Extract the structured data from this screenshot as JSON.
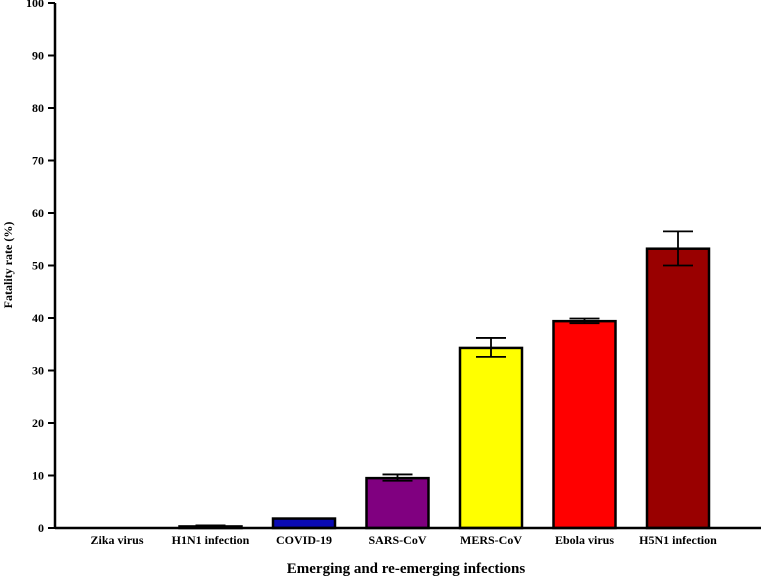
{
  "chart_data": {
    "type": "bar",
    "xlabel": "Emerging and re-emerging infections",
    "ylabel": "Fatality rate (%)",
    "ylim": [
      0,
      100
    ],
    "yticks": [
      0,
      10,
      20,
      30,
      40,
      50,
      60,
      70,
      80,
      90,
      100
    ],
    "categories": [
      "Zika virus",
      "H1N1 infection",
      "COVID-19",
      "SARS-CoV",
      "MERS-CoV",
      "Ebola virus",
      "H5N1 infection"
    ],
    "values": [
      0,
      0.3,
      1.8,
      9.5,
      34.3,
      39.4,
      53.2
    ],
    "error_low": [
      0,
      0.2,
      1.8,
      9.0,
      32.6,
      39.0,
      50.0
    ],
    "error_high": [
      0,
      0.5,
      1.8,
      10.2,
      36.2,
      39.9,
      56.5
    ],
    "colors": [
      "#000000",
      "#000000",
      "#0a0ab4",
      "#800080",
      "#ffff00",
      "#ff0000",
      "#990000"
    ],
    "grid": false
  }
}
